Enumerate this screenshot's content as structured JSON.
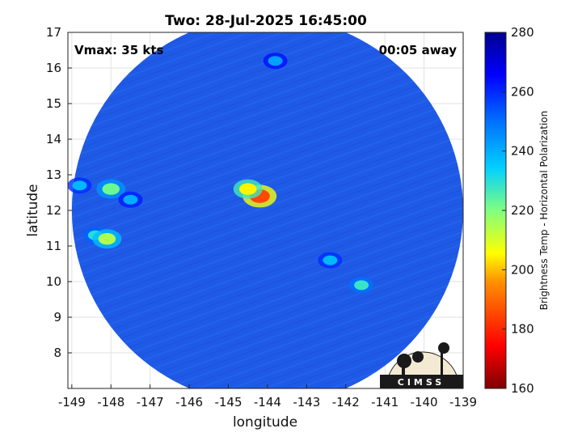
{
  "title": "Two: 28-Jul-2025 16:45:00",
  "annotations": {
    "vmax": "Vmax: 35 kts",
    "away": "00:05 away"
  },
  "logo_text": "CIMSS",
  "colors": {
    "background_disk": "#1f5ae6",
    "colormap": [
      "#7f0000",
      "#ff0000",
      "#ff8c00",
      "#ffff00",
      "#7fff7f",
      "#00cfff",
      "#0070ff",
      "#0000ff",
      "#00008f"
    ]
  },
  "chart_data": {
    "type": "heatmap",
    "title": "Two: 28-Jul-2025 16:45:00",
    "xlabel": "longitude",
    "ylabel": "latitude",
    "xlim": [
      -149.1,
      -139
    ],
    "ylim": [
      7,
      17
    ],
    "xticks": [
      -149,
      -148,
      -147,
      -146,
      -145,
      -144,
      -143,
      -142,
      -141,
      -140,
      -139
    ],
    "yticks": [
      8,
      9,
      10,
      11,
      12,
      13,
      14,
      15,
      16,
      17
    ],
    "grid": true,
    "colorbar": {
      "label": "Brightness Temp - Horizontal Polarization",
      "range": [
        160,
        280
      ],
      "ticks": [
        160,
        180,
        200,
        220,
        240,
        260,
        280
      ]
    },
    "swath": {
      "center": [
        -144.0,
        12.0
      ],
      "background_value": 258
    },
    "features": [
      {
        "lon": -144.2,
        "lat": 12.4,
        "value": 185
      },
      {
        "lon": -144.5,
        "lat": 12.6,
        "value": 205
      },
      {
        "lon": -148.0,
        "lat": 12.6,
        "value": 222
      },
      {
        "lon": -148.4,
        "lat": 11.3,
        "value": 230
      },
      {
        "lon": -148.1,
        "lat": 11.2,
        "value": 215
      },
      {
        "lon": -141.6,
        "lat": 9.9,
        "value": 228
      },
      {
        "lon": -142.4,
        "lat": 10.6,
        "value": 238
      },
      {
        "lon": -148.8,
        "lat": 12.7,
        "value": 238
      },
      {
        "lon": -147.5,
        "lat": 12.3,
        "value": 240
      },
      {
        "lon": -143.8,
        "lat": 16.2,
        "value": 242
      }
    ]
  }
}
